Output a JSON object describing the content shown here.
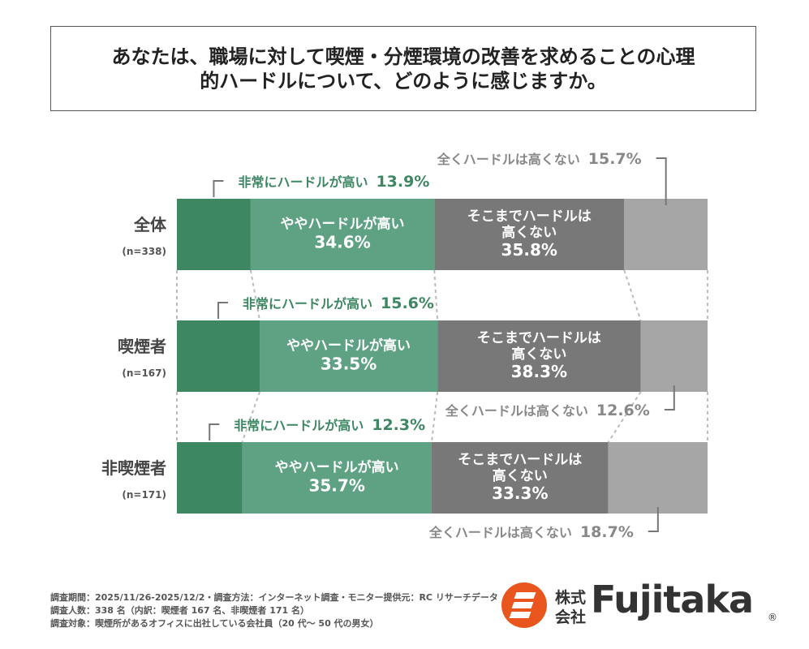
{
  "chart_data": {
    "type": "bar",
    "orientation": "horizontal",
    "stacked": true,
    "title": "あなたは、職場に対して喫煙・分煙環境の改善を求めることの心理的ハードルについて、どのように感じますか。",
    "categories": [
      "全体",
      "喫煙者",
      "非喫煙者"
    ],
    "category_notes": [
      "(n=338)",
      "(n=167)",
      "(n=171)"
    ],
    "xlim": [
      0,
      100
    ],
    "series": [
      {
        "name": "非常にハードルが高い",
        "color": "#3d8762",
        "values": [
          13.9,
          15.6,
          12.3
        ],
        "value_labels": [
          "13.9%",
          "15.6%",
          "12.3%"
        ]
      },
      {
        "name": "ややハードルが高い",
        "color": "#5fa283",
        "values": [
          34.6,
          33.5,
          35.7
        ],
        "value_labels": [
          "34.6%",
          "33.5%",
          "35.7%"
        ]
      },
      {
        "name": "そこまでハードルは高くない",
        "color": "#787878",
        "values": [
          35.8,
          38.3,
          33.3
        ],
        "value_labels": [
          "35.8%",
          "38.3%",
          "33.3%"
        ]
      },
      {
        "name": "全くハードルは高くない",
        "color": "#a6a6a6",
        "values": [
          15.7,
          12.6,
          18.7
        ],
        "value_labels": [
          "15.7%",
          "12.6%",
          "18.7%"
        ]
      }
    ]
  },
  "footer": {
    "notes": [
      "調査期間：2025/11/26-2025/12/2・調査方法：インターネット調査・モニター提供元：RC リサーチデータ",
      "調査人数：338 名（内訳：喫煙者 167 名、非喫煙者 171 名）",
      "調査対象：喫煙所があるオフィスに出社している会社員（20 代～ 50 代の男女）"
    ]
  },
  "logo": {
    "kabushiki": "株式",
    "kaisha": "会社",
    "name": "Fujitaka",
    "mark": "®"
  }
}
